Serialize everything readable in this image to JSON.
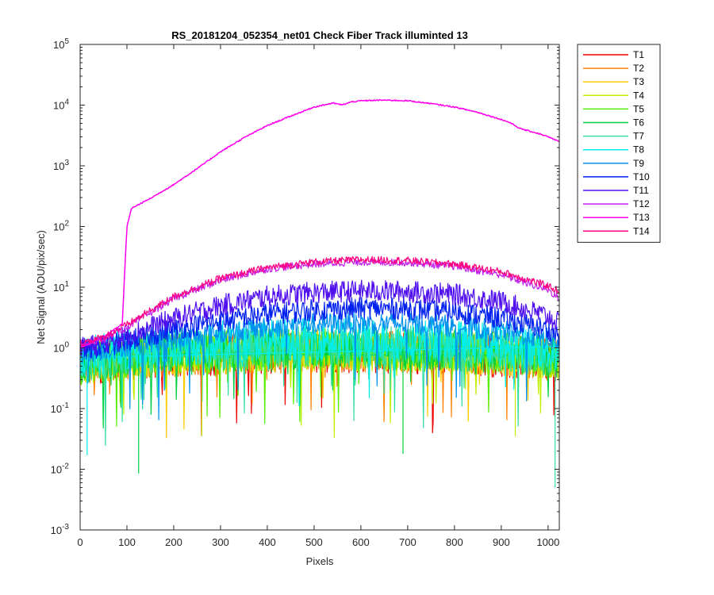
{
  "chart_data": {
    "type": "line",
    "title": "RS_20181204_052354_net01   Check Fiber     Track illuminted 13",
    "xlabel": "Pixels",
    "ylabel": "Net Signal (ADU/pix/sec)",
    "xlim": [
      0,
      1024
    ],
    "ylim": [
      0.001,
      100000
    ],
    "yscale": "log",
    "xticks": [
      0,
      100,
      200,
      300,
      400,
      500,
      600,
      700,
      800,
      900,
      1000
    ],
    "yticks": [
      {
        "value": 0.001,
        "base": "10",
        "exp": "-3"
      },
      {
        "value": 0.01,
        "base": "10",
        "exp": "-2"
      },
      {
        "value": 0.1,
        "base": "10",
        "exp": "-1"
      },
      {
        "value": 1,
        "base": "10",
        "exp": "0"
      },
      {
        "value": 10,
        "base": "10",
        "exp": "1"
      },
      {
        "value": 100,
        "base": "10",
        "exp": "2"
      },
      {
        "value": 1000,
        "base": "10",
        "exp": "3"
      },
      {
        "value": 10000,
        "base": "10",
        "exp": "4"
      },
      {
        "value": 100000,
        "base": "10",
        "exp": "5"
      }
    ],
    "grid": false,
    "legend_position": "outside-right",
    "series": [
      {
        "name": "T1",
        "color": "#ee0000",
        "x": [
          0,
          50,
          100,
          200,
          300,
          400,
          500,
          600,
          700,
          800,
          900,
          1000,
          1024
        ],
        "y": [
          0.5,
          0.6,
          0.65,
          0.72,
          0.78,
          0.82,
          0.85,
          0.85,
          0.83,
          0.8,
          0.72,
          0.62,
          0.58
        ]
      },
      {
        "name": "T2",
        "color": "#ff8000",
        "x": [
          0,
          50,
          100,
          200,
          300,
          400,
          500,
          600,
          700,
          800,
          900,
          1000,
          1024
        ],
        "y": [
          0.55,
          0.62,
          0.68,
          0.75,
          0.8,
          0.85,
          0.88,
          0.88,
          0.86,
          0.82,
          0.75,
          0.65,
          0.6
        ]
      },
      {
        "name": "T3",
        "color": "#ffcc00",
        "x": [
          0,
          50,
          100,
          200,
          300,
          400,
          500,
          600,
          700,
          800,
          900,
          1000,
          1024
        ],
        "y": [
          0.55,
          0.62,
          0.7,
          0.78,
          0.84,
          0.88,
          0.9,
          0.9,
          0.88,
          0.85,
          0.78,
          0.68,
          0.62
        ]
      },
      {
        "name": "T4",
        "color": "#c0f000",
        "x": [
          0,
          50,
          100,
          200,
          300,
          400,
          500,
          600,
          700,
          800,
          900,
          1000,
          1024
        ],
        "y": [
          0.55,
          0.63,
          0.7,
          0.8,
          0.86,
          0.9,
          0.92,
          0.92,
          0.9,
          0.87,
          0.8,
          0.7,
          0.63
        ]
      },
      {
        "name": "T5",
        "color": "#55ee00",
        "x": [
          0,
          50,
          100,
          200,
          300,
          400,
          500,
          600,
          700,
          800,
          900,
          1000,
          1024
        ],
        "y": [
          0.55,
          0.63,
          0.72,
          0.82,
          0.88,
          0.93,
          0.95,
          0.95,
          0.93,
          0.9,
          0.82,
          0.72,
          0.65
        ]
      },
      {
        "name": "T6",
        "color": "#00d040",
        "x": [
          0,
          50,
          100,
          200,
          300,
          400,
          500,
          600,
          700,
          800,
          900,
          1000,
          1024
        ],
        "y": [
          0.56,
          0.65,
          0.75,
          0.85,
          0.92,
          0.97,
          1.0,
          1.0,
          0.98,
          0.93,
          0.85,
          0.75,
          0.68
        ]
      },
      {
        "name": "T7",
        "color": "#30e0a0",
        "x": [
          0,
          50,
          100,
          200,
          300,
          400,
          500,
          600,
          700,
          800,
          900,
          1000,
          1024
        ],
        "y": [
          0.58,
          0.68,
          0.8,
          0.92,
          1.0,
          1.05,
          1.08,
          1.08,
          1.05,
          1.0,
          0.9,
          0.78,
          0.7
        ]
      },
      {
        "name": "T8",
        "color": "#00eeee",
        "x": [
          0,
          50,
          100,
          200,
          300,
          400,
          500,
          600,
          700,
          800,
          900,
          1000,
          1024
        ],
        "y": [
          0.65,
          0.8,
          0.95,
          1.1,
          1.25,
          1.35,
          1.4,
          1.42,
          1.38,
          1.3,
          1.15,
          0.95,
          0.85
        ]
      },
      {
        "name": "T9",
        "color": "#0090ee",
        "x": [
          0,
          50,
          100,
          200,
          300,
          400,
          500,
          600,
          700,
          800,
          900,
          1000,
          1024
        ],
        "y": [
          0.8,
          0.95,
          1.1,
          1.4,
          1.8,
          2.2,
          2.5,
          2.6,
          2.5,
          2.3,
          1.9,
          1.4,
          1.2
        ]
      },
      {
        "name": "T10",
        "color": "#0020ee",
        "x": [
          0,
          50,
          100,
          200,
          300,
          400,
          500,
          600,
          700,
          800,
          900,
          1000,
          1024
        ],
        "y": [
          0.9,
          1.05,
          1.3,
          2.0,
          2.8,
          3.6,
          4.2,
          4.5,
          4.4,
          3.9,
          3.1,
          2.0,
          1.6
        ]
      },
      {
        "name": "T11",
        "color": "#5010ee",
        "x": [
          0,
          50,
          100,
          200,
          300,
          400,
          500,
          600,
          700,
          800,
          900,
          1000,
          1024
        ],
        "y": [
          1.0,
          1.2,
          1.6,
          3.0,
          5.0,
          7.0,
          8.2,
          8.7,
          8.5,
          7.6,
          5.8,
          3.3,
          2.5
        ]
      },
      {
        "name": "T12",
        "color": "#c020ee",
        "x": [
          0,
          50,
          100,
          200,
          300,
          400,
          500,
          600,
          700,
          800,
          900,
          1000,
          1024
        ],
        "y": [
          1.1,
          1.4,
          2.2,
          6.5,
          13,
          20,
          24,
          26,
          25.5,
          22,
          16,
          9,
          6.5
        ]
      },
      {
        "name": "T13",
        "color": "#ff00ee",
        "x": [
          0,
          50,
          90,
          100,
          110,
          150,
          200,
          250,
          300,
          350,
          400,
          450,
          500,
          540,
          560,
          580,
          600,
          650,
          700,
          750,
          800,
          850,
          900,
          920,
          940,
          980,
          1000,
          1024
        ],
        "y": [
          1.0,
          1.5,
          2.5,
          100,
          200,
          290,
          490,
          900,
          1700,
          2900,
          4600,
          6600,
          9300,
          10800,
          10100,
          11300,
          11800,
          12100,
          11800,
          10600,
          9300,
          7600,
          5800,
          5100,
          4100,
          3400,
          3000,
          2500
        ]
      },
      {
        "name": "T14",
        "color": "#ff0080",
        "x": [
          0,
          50,
          100,
          200,
          300,
          400,
          500,
          600,
          700,
          800,
          900,
          1000,
          1024
        ],
        "y": [
          1.2,
          1.5,
          2.4,
          7.0,
          14,
          21,
          26,
          28.5,
          27.5,
          24,
          18,
          10.5,
          8.5
        ]
      }
    ],
    "dips": [
      {
        "x": 15,
        "series": "T8",
        "y": 0.017
      },
      {
        "x": 125,
        "series": "T6",
        "y": 0.0085
      },
      {
        "x": 260,
        "series": "T4",
        "y": 0.035
      },
      {
        "x": 690,
        "series": "T6",
        "y": 0.018
      },
      {
        "x": 930,
        "series": "T4",
        "y": 0.035
      },
      {
        "x": 1015,
        "series": "T7",
        "y": 0.005
      }
    ]
  }
}
